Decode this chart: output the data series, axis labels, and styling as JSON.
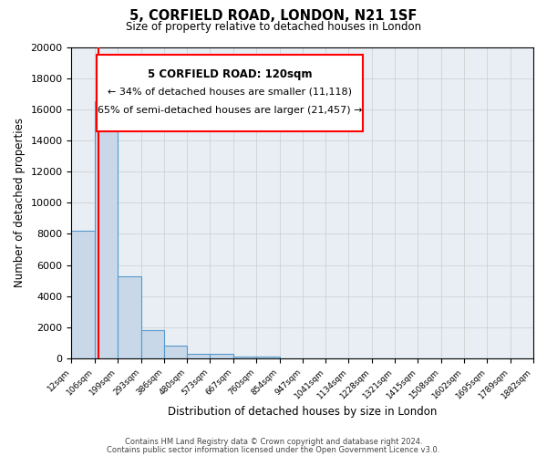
{
  "title": "5, CORFIELD ROAD, LONDON, N21 1SF",
  "subtitle": "Size of property relative to detached houses in London",
  "xlabel": "Distribution of detached houses by size in London",
  "ylabel": "Number of detached properties",
  "bar_color": "#c8d8e8",
  "bar_edge_color": "#5599cc",
  "bin_edges": [
    12,
    106,
    199,
    293,
    386,
    480,
    573,
    667,
    760,
    854,
    947,
    1041,
    1134,
    1228,
    1321,
    1415,
    1508,
    1602,
    1695,
    1789,
    1882
  ],
  "bar_heights": [
    8200,
    16500,
    5300,
    1800,
    800,
    300,
    300,
    100,
    100,
    0,
    0,
    0,
    0,
    0,
    0,
    0,
    0,
    0,
    0,
    0
  ],
  "red_line_x": 120,
  "ylim": [
    0,
    20000
  ],
  "yticks": [
    0,
    2000,
    4000,
    6000,
    8000,
    10000,
    12000,
    14000,
    16000,
    18000,
    20000
  ],
  "annotation_title": "5 CORFIELD ROAD: 120sqm",
  "annotation_line1": "← 34% of detached houses are smaller (11,118)",
  "annotation_line2": "65% of semi-detached houses are larger (21,457) →",
  "grid_color": "#cccccc",
  "background_color": "#e8eef4",
  "footer_line1": "Contains HM Land Registry data © Crown copyright and database right 2024.",
  "footer_line2": "Contains public sector information licensed under the Open Government Licence v3.0."
}
